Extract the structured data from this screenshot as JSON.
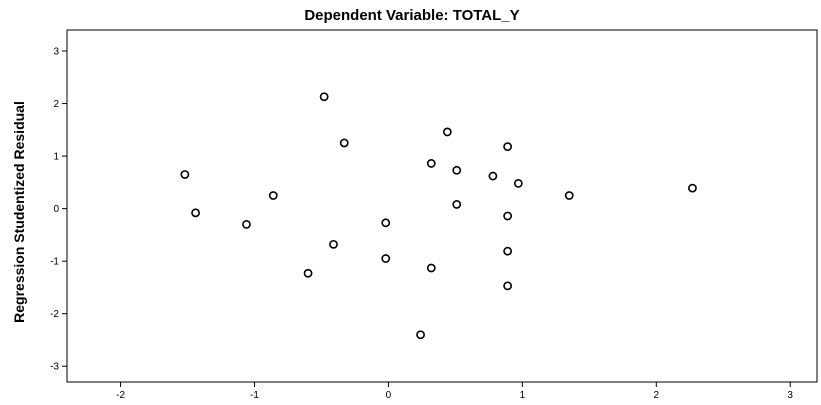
{
  "chart_data": {
    "type": "scatter",
    "title": "Dependent Variable: TOTAL_Y",
    "xlabel": "",
    "ylabel": "Regression Studentized Residual",
    "xlim": [
      -2.4,
      3.2
    ],
    "ylim": [
      -3.3,
      3.4
    ],
    "xticks": [
      -2,
      -1,
      0,
      1,
      2,
      3
    ],
    "yticks": [
      3,
      2,
      1,
      0,
      -1,
      -2,
      -3
    ],
    "grid": false,
    "legend": "none",
    "marker_color": "#000000",
    "background": "#ffffff",
    "points": [
      {
        "x": -1.52,
        "y": 0.65
      },
      {
        "x": -1.44,
        "y": -0.08
      },
      {
        "x": -1.06,
        "y": -0.3
      },
      {
        "x": -0.86,
        "y": 0.25
      },
      {
        "x": -0.6,
        "y": -1.23
      },
      {
        "x": -0.48,
        "y": 2.13
      },
      {
        "x": -0.41,
        "y": -0.68
      },
      {
        "x": -0.33,
        "y": 1.25
      },
      {
        "x": -0.02,
        "y": -0.27
      },
      {
        "x": -0.02,
        "y": -0.95
      },
      {
        "x": 0.24,
        "y": -2.4
      },
      {
        "x": 0.32,
        "y": 0.86
      },
      {
        "x": 0.32,
        "y": -1.13
      },
      {
        "x": 0.44,
        "y": 1.46
      },
      {
        "x": 0.51,
        "y": 0.73
      },
      {
        "x": 0.51,
        "y": 0.08
      },
      {
        "x": 0.78,
        "y": 0.62
      },
      {
        "x": 0.89,
        "y": 1.18
      },
      {
        "x": 0.89,
        "y": -0.14
      },
      {
        "x": 0.89,
        "y": -0.81
      },
      {
        "x": 0.89,
        "y": -1.47
      },
      {
        "x": 0.97,
        "y": 0.48
      },
      {
        "x": 1.35,
        "y": 0.25
      },
      {
        "x": 2.27,
        "y": 0.39
      }
    ]
  }
}
